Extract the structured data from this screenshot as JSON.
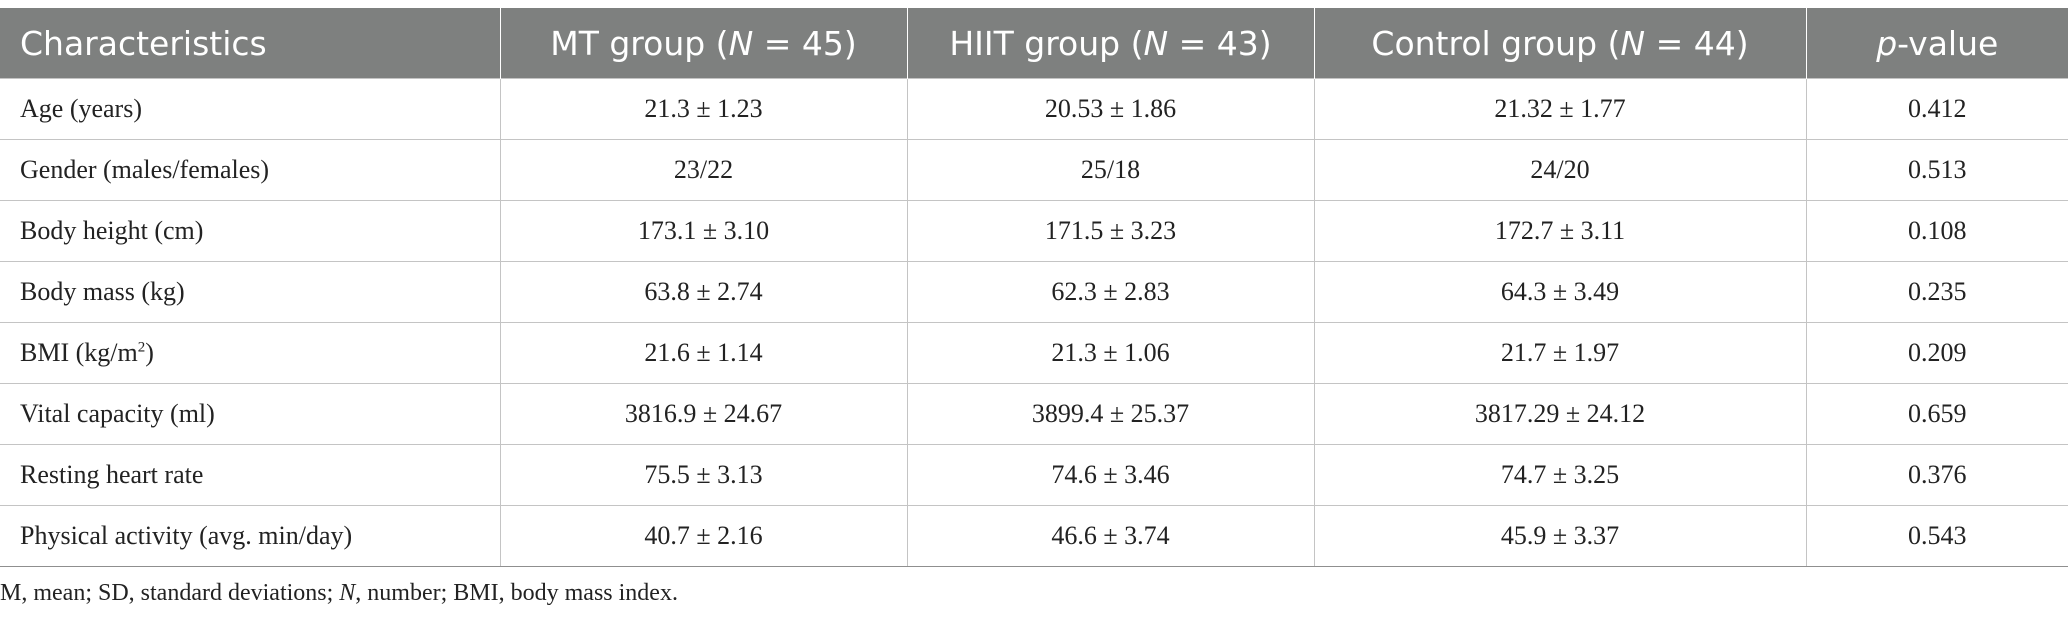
{
  "table": {
    "headers": [
      {
        "label": "Characteristics"
      },
      {
        "pre": "MT group (",
        "italic": "N",
        "post": " = 45)"
      },
      {
        "pre": "HIIT group (",
        "italic": "N",
        "post": " = 43)"
      },
      {
        "pre": "Control group (",
        "italic": "N",
        "post": " = 44)"
      },
      {
        "pre": "",
        "italic": "p",
        "post": "-value"
      }
    ],
    "rows": [
      {
        "label": "Age (years)",
        "mt": "21.3 ± 1.23",
        "hiit": "20.53 ± 1.86",
        "control": "21.32 ± 1.77",
        "p": "0.412"
      },
      {
        "label": "Gender (males/females)",
        "mt": "23/22",
        "hiit": "25/18",
        "control": "24/20",
        "p": "0.513"
      },
      {
        "label": "Body height (cm)",
        "mt": "173.1 ± 3.10",
        "hiit": "171.5 ± 3.23",
        "control": "172.7 ± 3.11",
        "p": "0.108"
      },
      {
        "label": "Body mass (kg)",
        "mt": "63.8 ± 2.74",
        "hiit": "62.3 ± 2.83",
        "control": "64.3 ± 3.49",
        "p": "0.235"
      },
      {
        "label_pre": "BMI (kg/m",
        "label_sup": "2",
        "label_post": ")",
        "mt": "21.6 ± 1.14",
        "hiit": "21.3 ± 1.06",
        "control": "21.7 ± 1.97",
        "p": "0.209"
      },
      {
        "label": "Vital capacity (ml)",
        "mt": "3816.9 ± 24.67",
        "hiit": "3899.4 ± 25.37",
        "control": "3817.29 ± 24.12",
        "p": "0.659"
      },
      {
        "label": "Resting heart rate",
        "mt": "75.5 ± 3.13",
        "hiit": "74.6 ± 3.46",
        "control": "74.7 ± 3.25",
        "p": "0.376"
      },
      {
        "label": "Physical activity (avg. min/day)",
        "mt": "40.7 ± 2.16",
        "hiit": "46.6 ± 3.74",
        "control": "45.9 ± 3.37",
        "p": "0.543"
      }
    ]
  },
  "footnote": {
    "part1": "M, mean; SD, standard deviations; ",
    "italic": "N",
    "part2": ", number; BMI, body mass index."
  },
  "colors": {
    "header_bg": "#7e807f",
    "header_text": "#ffffff",
    "grid_line": "#c4c4c4"
  }
}
